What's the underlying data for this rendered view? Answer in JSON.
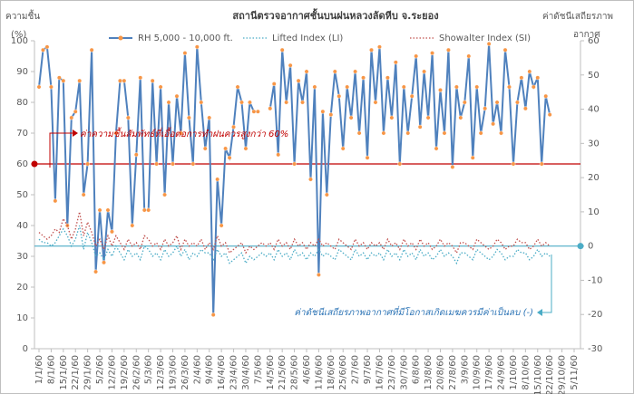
{
  "chart_data": {
    "type": "line",
    "title": "สถานีตรวจอากาศชั้นบนฝนหลวงลัดหีบ จ.ระยอง",
    "ylabel": [
      "ความชื้น",
      "(%)"
    ],
    "y2label": [
      "ค่าดัชนีเสถียรภาพ",
      "อากาศ"
    ],
    "categories": [
      "1/1/60",
      null,
      null,
      "8/1/60",
      null,
      null,
      "15/1/60",
      null,
      null,
      "22/1/60",
      null,
      null,
      "29/1/60",
      null,
      null,
      "5/2/60",
      null,
      null,
      "12/2/60",
      null,
      null,
      "19/2/60",
      null,
      null,
      "26/2/60",
      null,
      null,
      "5/3/60",
      null,
      null,
      "12/3/60",
      null,
      null,
      "19/3/60",
      null,
      null,
      "26/3/60",
      null,
      null,
      "2/4/60",
      null,
      null,
      "9/4/60",
      null,
      null,
      "16/4/60",
      null,
      null,
      "23/4/60",
      null,
      null,
      "30/4/60",
      null,
      null,
      "7/5/60",
      null,
      null,
      "14/5/60",
      null,
      null,
      "21/5/60",
      null,
      null,
      "28/5/60",
      null,
      null,
      "4/6/60",
      null,
      null,
      "11/6/60",
      null,
      null,
      "18/6/60",
      null,
      null,
      "25/6/60",
      null,
      null,
      "2/7/60",
      null,
      null,
      "9/7/60",
      null,
      null,
      "16/7/60",
      null,
      null,
      "23/7/60",
      null,
      null,
      "30/7/60",
      null,
      null,
      "6/8/60",
      null,
      null,
      "13/8/60",
      null,
      null,
      "20/8/60",
      null,
      null,
      "27/8/60",
      null,
      null,
      "3/9/60",
      null,
      null,
      "10/9/60",
      null,
      null,
      "17/9/60",
      null,
      null,
      "24/9/60",
      null,
      null,
      "1/10/60",
      null,
      null,
      "8/10/60",
      null,
      null,
      "15/10/60",
      null,
      null,
      "22/10/60",
      null,
      null,
      "29/10/60",
      null,
      null,
      "5/11/60"
    ],
    "series": [
      {
        "name": "RH 5,000 - 10,000 ft.",
        "color": "#4f81bd",
        "marker": "#f79646",
        "style": "solid",
        "axis": "y",
        "values": [
          85,
          97,
          98,
          85,
          48,
          88,
          87,
          40,
          75,
          77,
          87,
          50,
          60,
          97,
          25,
          45,
          28,
          45,
          38,
          70,
          87,
          87,
          75,
          40,
          63,
          88,
          45,
          45,
          87,
          60,
          85,
          50,
          80,
          60,
          82,
          70,
          96,
          75,
          60,
          98,
          80,
          65,
          75,
          11,
          55,
          40,
          65,
          62,
          72,
          85,
          80,
          65,
          80,
          77,
          77,
          null,
          null,
          78,
          86,
          63,
          97,
          80,
          92,
          60,
          87,
          80,
          90,
          55,
          85,
          24,
          77,
          50,
          76,
          90,
          82,
          65,
          85,
          75,
          90,
          70,
          88,
          62,
          97,
          80,
          98,
          70,
          88,
          75,
          93,
          60,
          85,
          70,
          82,
          95,
          72,
          90,
          75,
          96,
          65,
          84,
          70,
          97,
          59,
          85,
          75,
          80,
          95,
          62,
          85,
          70,
          78,
          99,
          73,
          80,
          70,
          97,
          85,
          60,
          80,
          88,
          78,
          90,
          85,
          88,
          60,
          82,
          76,
          null,
          null,
          null,
          null,
          null,
          null
        ]
      },
      {
        "name": "Lifted Index (LI)",
        "color": "#4bacc6",
        "style": "dotted",
        "axis": "y2",
        "values": [
          2,
          1,
          1,
          0,
          1,
          3,
          5,
          3,
          0,
          2,
          6,
          -1,
          4,
          1,
          -3,
          -2,
          -4,
          -1,
          -3,
          0,
          -2,
          -4,
          -1,
          -3,
          -2,
          -4,
          0,
          -1,
          -3,
          -2,
          -4,
          -1,
          -3,
          -2,
          0,
          -3,
          -1,
          -4,
          -2,
          -3,
          -1,
          -2,
          -2,
          -4,
          -1,
          -3,
          -2,
          -5,
          -4,
          -3,
          -2,
          -5,
          -3,
          -4,
          -3,
          -2,
          -3,
          -2,
          -4,
          -1,
          -3,
          -2,
          -4,
          -1,
          -3,
          -2,
          -4,
          -2,
          -3,
          -1,
          -3,
          -2,
          -3,
          -4,
          -1,
          -2,
          -3,
          -4,
          -1,
          -3,
          -2,
          -4,
          -2,
          -3,
          -2,
          -4,
          -1,
          -3,
          -2,
          -4,
          -1,
          -3,
          -2,
          -4,
          -1,
          -3,
          -2,
          -4,
          -3,
          -1,
          -3,
          -2,
          -3,
          -5,
          -2,
          -2,
          -3,
          -4,
          -1,
          -2,
          -3,
          -4,
          -3,
          -1,
          -2,
          -4,
          -3,
          -3,
          -1,
          -2,
          -2,
          -4,
          -3,
          -1,
          -3,
          -2,
          -3,
          null,
          null,
          null,
          null,
          null,
          null
        ]
      },
      {
        "name": "Showalter Index (SI)",
        "color": "#c0504d",
        "style": "dotted",
        "axis": "y2",
        "values": [
          4,
          3,
          2,
          3,
          5,
          4,
          8,
          6,
          2,
          5,
          10,
          3,
          7,
          4,
          0,
          2,
          -1,
          3,
          0,
          3,
          1,
          -1,
          2,
          0,
          1,
          -1,
          3,
          2,
          0,
          1,
          -1,
          2,
          0,
          1,
          3,
          -1,
          2,
          0,
          1,
          0,
          2,
          -1,
          1,
          -1,
          3,
          0,
          1,
          -2,
          -1,
          0,
          1,
          -2,
          0,
          -1,
          0,
          1,
          0,
          1,
          -1,
          2,
          0,
          1,
          -1,
          2,
          0,
          1,
          -1,
          1,
          0,
          2,
          0,
          1,
          0,
          -1,
          2,
          1,
          0,
          -1,
          2,
          0,
          1,
          -1,
          1,
          0,
          1,
          -1,
          2,
          0,
          1,
          -1,
          2,
          0,
          1,
          -1,
          2,
          0,
          1,
          -1,
          0,
          2,
          0,
          1,
          0,
          -2,
          1,
          1,
          0,
          -1,
          2,
          1,
          0,
          -1,
          0,
          2,
          1,
          -1,
          0,
          0,
          2,
          1,
          1,
          -1,
          0,
          2,
          0,
          1,
          0,
          null,
          null,
          null,
          null,
          null,
          null
        ]
      }
    ],
    "ylim": [
      0,
      100
    ],
    "yticks": [
      0,
      10,
      20,
      30,
      40,
      50,
      60,
      70,
      80,
      90,
      100
    ],
    "y2lim": [
      -30,
      60
    ],
    "y2ticks": [
      -30,
      -20,
      -10,
      0,
      10,
      20,
      30,
      40,
      50,
      60
    ],
    "hlines": [
      {
        "value": 60,
        "axis": "y",
        "color": "#c00000"
      },
      {
        "value": 0,
        "axis": "y2",
        "color": "#4bacc6"
      }
    ],
    "annotations": [
      {
        "text": "ค่าความชื้นสัมพัทธ์ที่เอื้อต่อการทำฝนควรสูงกว่า 60%",
        "color": "#c00000"
      },
      {
        "text": "ค่าดัชนีเสถียรภาพอากาศที่มีโอกาสเกิดเมฆควรมีค่าเป็นลบ (-)",
        "color": "#2e75b6"
      }
    ],
    "legend": "top"
  }
}
